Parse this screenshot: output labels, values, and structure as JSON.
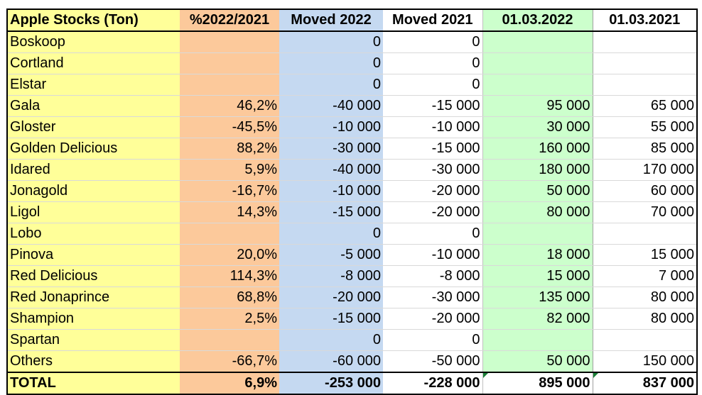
{
  "table": {
    "headers": [
      "Apple Stocks (Ton)",
      "%2022/2021",
      "Moved 2022",
      "Moved 2021",
      "01.03.2022",
      "01.03.2021"
    ],
    "rows": [
      [
        "Boskoop",
        "",
        "0",
        "0",
        "",
        ""
      ],
      [
        "Cortland",
        "",
        "0",
        "0",
        "",
        ""
      ],
      [
        "Elstar",
        "",
        "0",
        "0",
        "",
        ""
      ],
      [
        "Gala",
        "46,2%",
        "-40 000",
        "-15 000",
        "95 000",
        "65 000"
      ],
      [
        "Gloster",
        "-45,5%",
        "-10 000",
        "-10 000",
        "30 000",
        "55 000"
      ],
      [
        "Golden Delicious",
        "88,2%",
        "-30 000",
        "-15 000",
        "160 000",
        "85 000"
      ],
      [
        "Idared",
        "5,9%",
        "-40 000",
        "-30 000",
        "180 000",
        "170 000"
      ],
      [
        "Jonagold",
        "-16,7%",
        "-10 000",
        "-20 000",
        "50 000",
        "60 000"
      ],
      [
        "Ligol",
        "14,3%",
        "-15 000",
        "-20 000",
        "80 000",
        "70 000"
      ],
      [
        "Lobo",
        "",
        "0",
        "0",
        "",
        ""
      ],
      [
        "Pinova",
        "20,0%",
        "-5 000",
        "-10 000",
        "18 000",
        "15 000"
      ],
      [
        "Red Delicious",
        "114,3%",
        "-8 000",
        "-8 000",
        "15 000",
        "7 000"
      ],
      [
        "Red Jonaprince",
        "68,8%",
        "-20 000",
        "-30 000",
        "135 000",
        "80 000"
      ],
      [
        "Shampion",
        "2,5%",
        "-15 000",
        "-20 000",
        "82 000",
        "80 000"
      ],
      [
        "Spartan",
        "",
        "0",
        "0",
        "",
        ""
      ],
      [
        "Others",
        "-66,7%",
        "-60 000",
        "-50 000",
        "50 000",
        "150 000"
      ]
    ],
    "total": [
      "TOTAL",
      "6,9%",
      "-253 000",
      "-228 000",
      "895 000",
      "837 000"
    ]
  },
  "colors": {
    "variety_column": "#ffff99",
    "percent_column": "#fcc99b",
    "moved_2022_column": "#c5d9f1",
    "moved_2021_column": "#ffffff",
    "stock_2022_column": "#ccffcc",
    "stock_2021_column": "#ffffff"
  }
}
